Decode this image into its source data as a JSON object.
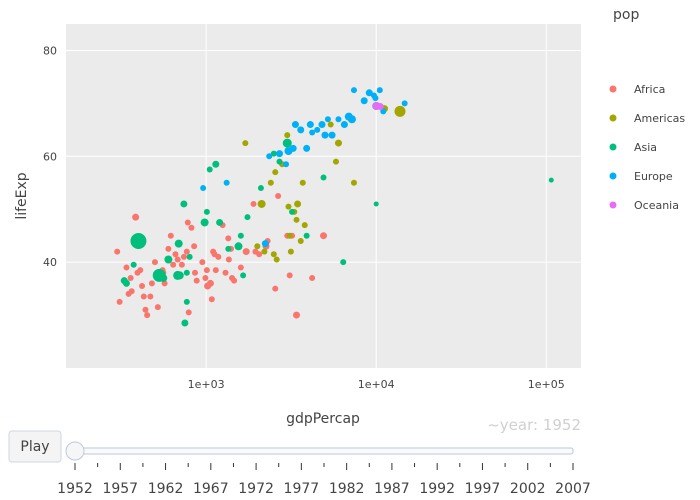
{
  "chart_data": {
    "type": "scatter",
    "xlabel": "gdpPercap",
    "ylabel": "lifeExp",
    "xscale": "log",
    "xlim": [
      150,
      160000
    ],
    "ylim": [
      20,
      85
    ],
    "xticks": [
      {
        "value": 1000,
        "label": "1e+03"
      },
      {
        "value": 10000,
        "label": "1e+04"
      },
      {
        "value": 100000,
        "label": "1e+05"
      }
    ],
    "yticks": [
      {
        "value": 40,
        "label": "40"
      },
      {
        "value": 60,
        "label": "60"
      },
      {
        "value": 80,
        "label": "80"
      }
    ],
    "grid": true,
    "legend_title": "pop",
    "legend_position": "right",
    "frame_label": "~year: 1952",
    "series": [
      {
        "name": "Africa",
        "color": "#F8766D",
        "points": [
          [
            300,
            42,
            6
          ],
          [
            310,
            32.5,
            6
          ],
          [
            340,
            39,
            6
          ],
          [
            350,
            34,
            6
          ],
          [
            365,
            34.5,
            6
          ],
          [
            360,
            37,
            6
          ],
          [
            385,
            48.5,
            7
          ],
          [
            395,
            38,
            6
          ],
          [
            410,
            38.5,
            6
          ],
          [
            420,
            35.5,
            6
          ],
          [
            430,
            33.5,
            6
          ],
          [
            440,
            31,
            6
          ],
          [
            450,
            30,
            6
          ],
          [
            470,
            33.5,
            6
          ],
          [
            480,
            36,
            6
          ],
          [
            500,
            40,
            6
          ],
          [
            520,
            31.5,
            6
          ],
          [
            555,
            38.5,
            6
          ],
          [
            560,
            38,
            6
          ],
          [
            570,
            36,
            6
          ],
          [
            600,
            42.5,
            6
          ],
          [
            620,
            45,
            6
          ],
          [
            640,
            39.5,
            6
          ],
          [
            660,
            41.5,
            6
          ],
          [
            680,
            40.5,
            6
          ],
          [
            700,
            37.5,
            6
          ],
          [
            720,
            39.5,
            6
          ],
          [
            740,
            41,
            6
          ],
          [
            770,
            42,
            6
          ],
          [
            780,
            47.5,
            6
          ],
          [
            790,
            30.5,
            6
          ],
          [
            820,
            46.5,
            6
          ],
          [
            850,
            43,
            6
          ],
          [
            860,
            38,
            6
          ],
          [
            880,
            36.5,
            6
          ],
          [
            950,
            40,
            6
          ],
          [
            990,
            37,
            6
          ],
          [
            1010,
            38.5,
            6
          ],
          [
            1020,
            35.5,
            7
          ],
          [
            1060,
            36,
            7
          ],
          [
            1080,
            33,
            6
          ],
          [
            1100,
            42,
            6
          ],
          [
            1120,
            41.5,
            6
          ],
          [
            1140,
            38.5,
            6
          ],
          [
            1180,
            41,
            6
          ],
          [
            1250,
            47,
            6
          ],
          [
            1300,
            38,
            6
          ],
          [
            1350,
            44.5,
            6
          ],
          [
            1360,
            40.5,
            6
          ],
          [
            1400,
            42.5,
            6
          ],
          [
            1420,
            37,
            6
          ],
          [
            1460,
            36.5,
            6
          ],
          [
            1600,
            39,
            6
          ],
          [
            1720,
            42,
            7
          ],
          [
            1900,
            51,
            6
          ],
          [
            1950,
            42,
            6
          ],
          [
            2050,
            41.5,
            6
          ],
          [
            2250,
            43,
            7
          ],
          [
            2300,
            44,
            6
          ],
          [
            2550,
            35,
            6
          ],
          [
            2650,
            52.5,
            6
          ],
          [
            3000,
            45,
            6
          ],
          [
            3100,
            37.5,
            6
          ],
          [
            3200,
            45,
            6
          ],
          [
            3400,
            30,
            7
          ],
          [
            4200,
            37,
            6
          ],
          [
            4900,
            45,
            7
          ]
        ]
      },
      {
        "name": "Americas",
        "color": "#A3A500",
        "points": [
          [
            1700,
            62.5,
            6
          ],
          [
            2000,
            43,
            6
          ],
          [
            2120,
            51,
            8
          ],
          [
            2200,
            42,
            6
          ],
          [
            2400,
            55,
            6
          ],
          [
            2500,
            41.5,
            6
          ],
          [
            2550,
            57,
            6
          ],
          [
            2600,
            40.5,
            6
          ],
          [
            2800,
            58.5,
            6
          ],
          [
            3000,
            64,
            6
          ],
          [
            3050,
            50.5,
            6
          ],
          [
            3100,
            45,
            6
          ],
          [
            3150,
            42,
            6
          ],
          [
            3300,
            49.5,
            6
          ],
          [
            3400,
            48,
            6
          ],
          [
            3450,
            51,
            7
          ],
          [
            3600,
            44,
            6
          ],
          [
            3700,
            55,
            6
          ],
          [
            3800,
            47,
            6
          ],
          [
            5400,
            66,
            6
          ],
          [
            5800,
            59,
            6
          ],
          [
            6000,
            62.5,
            7
          ],
          [
            7400,
            55,
            6
          ],
          [
            11200,
            69,
            7
          ],
          [
            13800,
            68.5,
            11
          ]
        ]
      },
      {
        "name": "Asia",
        "color": "#00BF7D",
        "points": [
          [
            330,
            36.5,
            7
          ],
          [
            340,
            36,
            7
          ],
          [
            375,
            39.5,
            6
          ],
          [
            400,
            44,
            16
          ],
          [
            530,
            37.5,
            13
          ],
          [
            560,
            37,
            8
          ],
          [
            600,
            40.5,
            8
          ],
          [
            680,
            37.5,
            9
          ],
          [
            690,
            43.5,
            8
          ],
          [
            700,
            37.5,
            8
          ],
          [
            740,
            51,
            7
          ],
          [
            750,
            28.5,
            7
          ],
          [
            770,
            32.5,
            6
          ],
          [
            770,
            38,
            6
          ],
          [
            800,
            41,
            6
          ],
          [
            980,
            47.5,
            8
          ],
          [
            1010,
            49.5,
            6
          ],
          [
            1050,
            57.5,
            6
          ],
          [
            1140,
            58.5,
            7
          ],
          [
            1200,
            47.5,
            7
          ],
          [
            1350,
            42.5,
            6
          ],
          [
            1550,
            43,
            8
          ],
          [
            1600,
            45,
            6
          ],
          [
            1650,
            37.5,
            6
          ],
          [
            1750,
            48.5,
            6
          ],
          [
            2100,
            54,
            6
          ],
          [
            2500,
            60.5,
            6
          ],
          [
            2700,
            59,
            6
          ],
          [
            3000,
            62.5,
            9
          ],
          [
            3200,
            49.5,
            6
          ],
          [
            3900,
            45,
            6
          ],
          [
            4900,
            56,
            6
          ],
          [
            6400,
            40,
            6
          ],
          [
            10000,
            51,
            5
          ],
          [
            107000,
            55.5,
            5
          ]
        ]
      },
      {
        "name": "Europe",
        "color": "#00B0F6",
        "points": [
          [
            960,
            54,
            6
          ],
          [
            1320,
            55,
            6
          ],
          [
            2230,
            43.5,
            7
          ],
          [
            2350,
            60,
            6
          ],
          [
            2700,
            60.5,
            7
          ],
          [
            2950,
            58.5,
            6
          ],
          [
            3050,
            61,
            8
          ],
          [
            3250,
            61.5,
            7
          ],
          [
            3350,
            66,
            7
          ],
          [
            3600,
            65,
            7
          ],
          [
            3900,
            61.5,
            7
          ],
          [
            4100,
            66,
            7
          ],
          [
            4200,
            64.5,
            6
          ],
          [
            4500,
            65,
            6
          ],
          [
            4800,
            66,
            7
          ],
          [
            5000,
            64,
            7
          ],
          [
            5200,
            67,
            6
          ],
          [
            5500,
            64,
            7
          ],
          [
            6000,
            67,
            6
          ],
          [
            6500,
            66,
            7
          ],
          [
            6900,
            67.5,
            8
          ],
          [
            7200,
            67,
            8
          ],
          [
            7400,
            72.5,
            6
          ],
          [
            8500,
            70.5,
            7
          ],
          [
            9100,
            72,
            7
          ],
          [
            9700,
            71.5,
            6
          ],
          [
            9900,
            71,
            6
          ],
          [
            10500,
            72.5,
            6
          ],
          [
            10000,
            69.5,
            8
          ],
          [
            11000,
            68.5,
            6
          ],
          [
            14700,
            70,
            6
          ]
        ]
      },
      {
        "name": "Oceania",
        "color": "#E76BF3",
        "points": [
          [
            10040,
            69.5,
            8
          ],
          [
            10560,
            69.4,
            7
          ]
        ]
      }
    ]
  },
  "slider": {
    "play_label": "Play",
    "steps": [
      "1952",
      "1957",
      "1962",
      "1967",
      "1972",
      "1977",
      "1982",
      "1987",
      "1992",
      "1997",
      "2002",
      "2007"
    ],
    "current": "1952"
  }
}
